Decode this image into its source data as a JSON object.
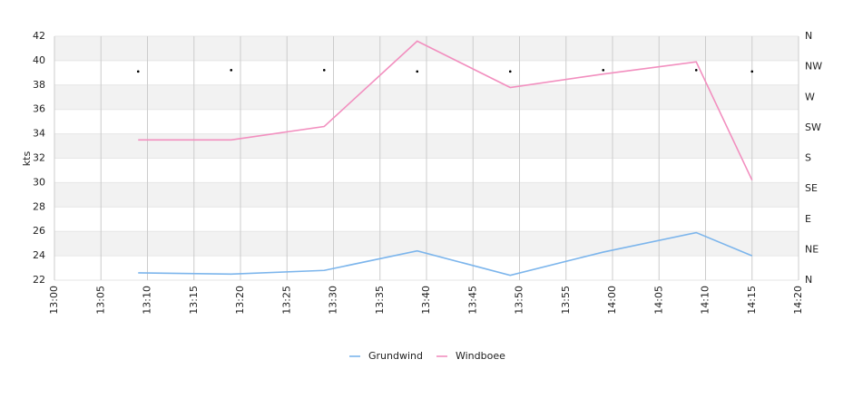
{
  "chart_data": {
    "type": "line",
    "y_axis_label": "kts",
    "x": [
      "13:09",
      "13:19",
      "13:29",
      "13:39",
      "13:49",
      "13:59",
      "14:09",
      "14:15"
    ],
    "xlim": [
      "13:00",
      "14:20"
    ],
    "xticks": [
      "13:00",
      "13:05",
      "13:10",
      "13:15",
      "13:20",
      "13:25",
      "13:30",
      "13:35",
      "13:40",
      "13:45",
      "13:50",
      "13:55",
      "14:00",
      "14:05",
      "14:10",
      "14:15",
      "14:20"
    ],
    "ylim": [
      22,
      42
    ],
    "yticks": [
      22,
      24,
      26,
      28,
      30,
      32,
      34,
      36,
      38,
      40,
      42
    ],
    "y2lim": [
      0,
      360
    ],
    "y2ticks": [
      {
        "value": 0,
        "label": "N"
      },
      {
        "value": 45,
        "label": "NE"
      },
      {
        "value": 90,
        "label": "E"
      },
      {
        "value": 135,
        "label": "SE"
      },
      {
        "value": 180,
        "label": "S"
      },
      {
        "value": 225,
        "label": "SW"
      },
      {
        "value": 270,
        "label": "W"
      },
      {
        "value": 315,
        "label": "NW"
      },
      {
        "value": 360,
        "label": "N"
      }
    ],
    "grid": true,
    "alternate_bands": true,
    "legend": "bottom",
    "series": [
      {
        "name": "Grundwind",
        "color": "#7cb5ec",
        "values": [
          22.6,
          22.5,
          22.8,
          24.4,
          22.4,
          24.3,
          25.9,
          24.0
        ]
      },
      {
        "name": "Windboee",
        "color": "#f28fbf",
        "values": [
          33.5,
          33.5,
          34.6,
          41.6,
          37.8,
          38.9,
          39.9,
          30.2
        ]
      },
      {
        "color": "#000000",
        "axis": "y2",
        "marker": "dot",
        "values": [
          308,
          310,
          310,
          308,
          308,
          310,
          310,
          308
        ]
      }
    ]
  }
}
